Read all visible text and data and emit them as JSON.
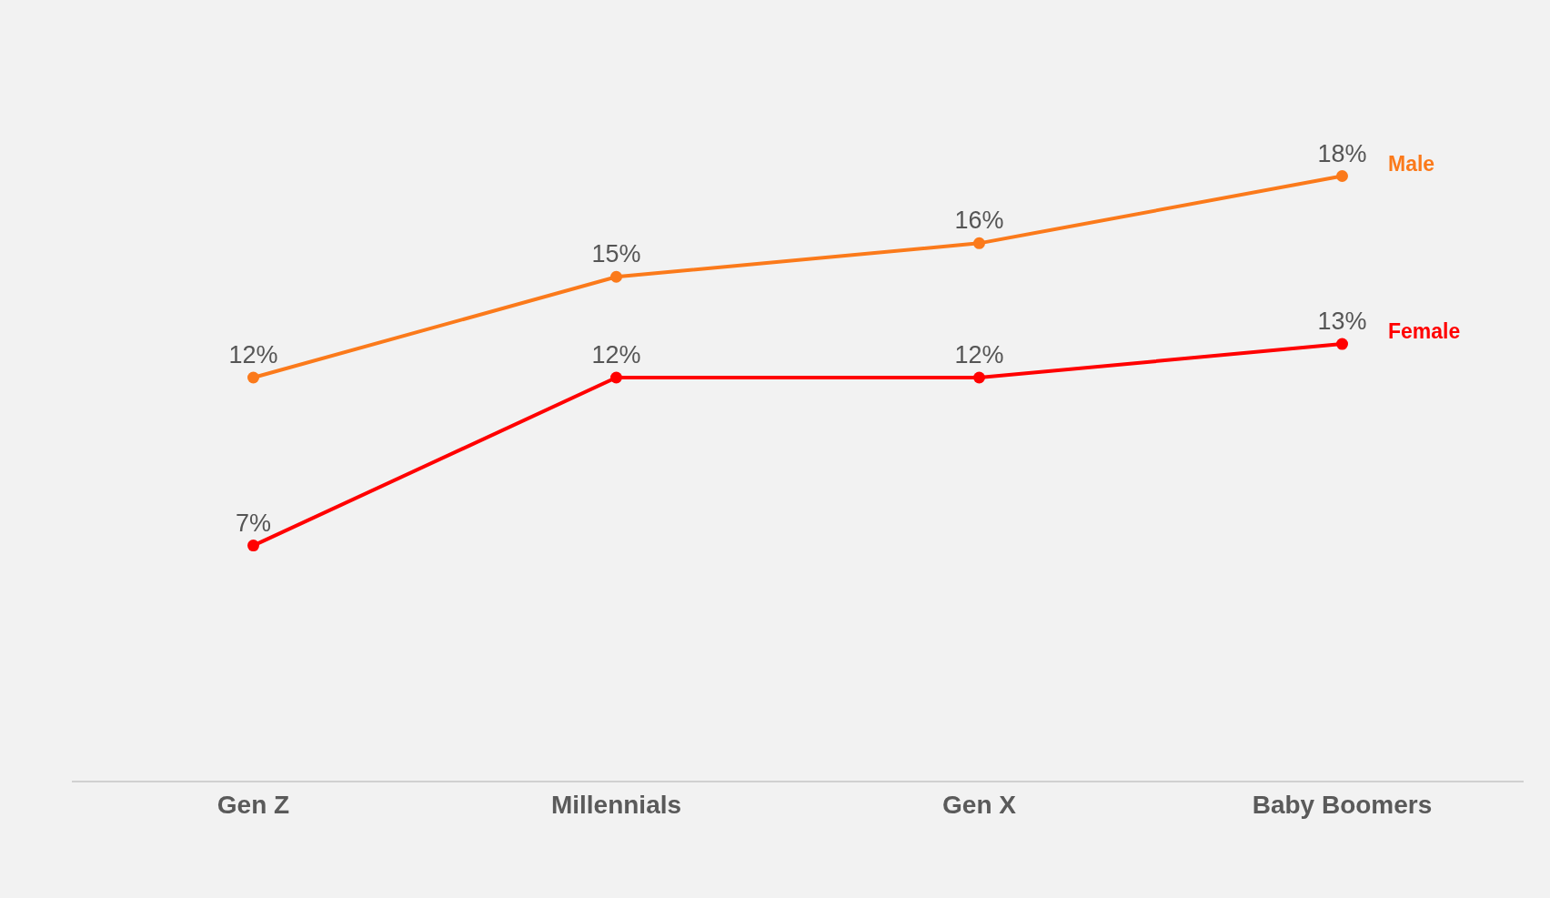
{
  "chart_data": {
    "type": "line",
    "categories": [
      "Gen Z",
      "Millennials",
      "Gen X",
      "Baby Boomers"
    ],
    "series": [
      {
        "name": "Male",
        "color": "#fb7a1b",
        "values": [
          12,
          15,
          16,
          18
        ],
        "value_labels": [
          "12%",
          "15%",
          "16%",
          "18%"
        ]
      },
      {
        "name": "Female",
        "color": "#ff0000",
        "values": [
          7,
          12,
          12,
          13
        ],
        "value_labels": [
          "7%",
          "12%",
          "12%",
          "13%"
        ]
      }
    ],
    "marker": "circle",
    "grid": false,
    "legend": false,
    "tick_labels": "x"
  }
}
